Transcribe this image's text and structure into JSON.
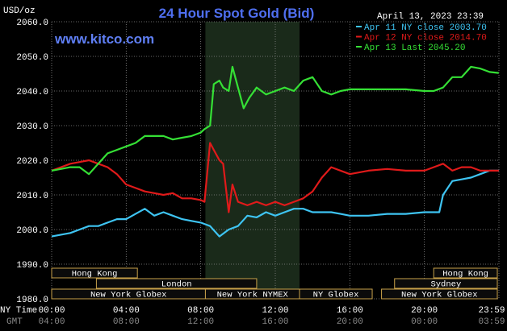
{
  "title": "24 Hour Spot Gold (Bid)",
  "website": "www.kitco.com",
  "date_label": "April 13, 2023 23:39",
  "unit_label": "USD/oz",
  "row_labels": {
    "ny_time": "NY Time",
    "gmt": "GMT"
  },
  "colors": {
    "background": "#000000",
    "grid": "#8a8a8a",
    "title": "#4f6ff0",
    "series_apr11": "#3ec4f2",
    "series_apr12": "#e01a1a",
    "series_apr13": "#35e035",
    "session_fill": "#0b0b0b",
    "session_border": "#c8a24a",
    "highlight": "#1a2a1a"
  },
  "chart_data": {
    "type": "line",
    "title": "24 Hour Spot Gold (Bid)",
    "xlabel": "",
    "ylabel": "USD/oz",
    "x_unit": "hours",
    "xlim": [
      0,
      24
    ],
    "ylim": [
      1980,
      2060
    ],
    "grid": true,
    "legend_position": "top-right",
    "y_ticks": [
      "2060.0",
      "2050.0",
      "2040.0",
      "2030.0",
      "2020.0",
      "2010.0",
      "2000.0",
      "1990.0",
      "1980.0"
    ],
    "x_ticks_ny": [
      "00:00",
      "04:00",
      "08:00",
      "12:00",
      "16:00",
      "20:00",
      "23:59"
    ],
    "x_ticks_gmt": [
      "04:00",
      "08:00",
      "12:00",
      "16:00",
      "20:00",
      "00:00",
      "03:59"
    ],
    "legend": [
      "Apr 11 NY close 2003.70",
      "Apr 12 NY close 2014.70",
      "Apr 13 Last 2045.20"
    ],
    "series": [
      {
        "name": "Apr 11 NY close 2003.70",
        "color": "#3ec4f2",
        "x": [
          0,
          0.5,
          1,
          1.5,
          2,
          2.5,
          3,
          3.5,
          4,
          4.5,
          5,
          5.5,
          6,
          6.5,
          7,
          7.5,
          8,
          8.5,
          9,
          9.5,
          10,
          10.5,
          11,
          11.5,
          12,
          12.5,
          13,
          13.5,
          14,
          14.5,
          15,
          15.5,
          16,
          17,
          18,
          19,
          20,
          20.8,
          21,
          21.5,
          22,
          22.5,
          23,
          23.5,
          23.99
        ],
        "values": [
          1998,
          1998.5,
          1999,
          2000,
          2001,
          2001,
          2002,
          2003,
          2003,
          2004.5,
          2006,
          2004,
          2005,
          2004,
          2003,
          2002.5,
          2002,
          2001,
          1998,
          2000,
          2001,
          2004,
          2003.5,
          2005,
          2004,
          2005,
          2006,
          2006,
          2005,
          2005,
          2005,
          2004.5,
          2004,
          2004,
          2004.5,
          2004.5,
          2005,
          2005,
          2010,
          2014,
          2014.5,
          2015,
          2016,
          2017,
          2017
        ]
      },
      {
        "name": "Apr 12 NY close 2014.70",
        "color": "#e01a1a",
        "x": [
          0,
          0.5,
          1,
          1.5,
          2,
          2.5,
          3,
          3.5,
          4,
          4.5,
          5,
          5.5,
          6,
          6.5,
          7,
          7.5,
          8,
          8.2,
          8.5,
          8.7,
          9,
          9.2,
          9.5,
          9.7,
          10,
          10.5,
          11,
          11.5,
          12,
          12.5,
          13,
          13.5,
          14,
          14.5,
          15,
          16,
          17,
          18,
          19,
          20,
          20.5,
          21,
          21.5,
          22,
          22.5,
          23,
          23.5,
          23.99
        ],
        "values": [
          2017,
          2018,
          2019,
          2019.5,
          2020,
          2019,
          2018,
          2016,
          2013,
          2012,
          2011,
          2010.5,
          2010,
          2010.5,
          2009,
          2009,
          2008.5,
          2008,
          2025,
          2023,
          2020,
          2019,
          2005,
          2013,
          2008,
          2007,
          2008,
          2007,
          2008,
          2007,
          2008,
          2009,
          2011,
          2015,
          2018,
          2016,
          2017,
          2017.5,
          2017,
          2017,
          2018,
          2019,
          2017,
          2018,
          2018,
          2017,
          2017,
          2017
        ]
      },
      {
        "name": "Apr 13 Last 2045.20",
        "color": "#35e035",
        "x": [
          0,
          0.5,
          1,
          1.5,
          2,
          2.5,
          3,
          3.5,
          4,
          4.5,
          5,
          5.5,
          6,
          6.5,
          7,
          7.5,
          8,
          8.2,
          8.5,
          8.7,
          9,
          9.2,
          9.5,
          9.7,
          10,
          10.3,
          10.6,
          11,
          11.5,
          12,
          12.5,
          13,
          13.5,
          14,
          14.5,
          15,
          15.5,
          16,
          17,
          18,
          19,
          20,
          20.5,
          21,
          21.5,
          22,
          22.5,
          23,
          23.5,
          23.99
        ],
        "values": [
          2017,
          2017.5,
          2018,
          2018,
          2016,
          2019,
          2022,
          2023,
          2024,
          2025,
          2027,
          2027,
          2027,
          2026,
          2026.5,
          2027,
          2028,
          2029,
          2030,
          2042,
          2043,
          2041,
          2040,
          2047,
          2041,
          2035,
          2038,
          2041,
          2039,
          2040,
          2041,
          2040,
          2043,
          2044,
          2040,
          2039,
          2040,
          2040.5,
          2040.5,
          2040.5,
          2040.5,
          2040,
          2040,
          2041,
          2044,
          2044,
          2047,
          2046.5,
          2045.5,
          2045.2
        ]
      }
    ],
    "highlight_band": {
      "x_start": 8.25,
      "x_end": 13.3
    },
    "sessions": [
      {
        "label": "Hong Kong",
        "row": 0,
        "start": -0.5,
        "end": 4.6
      },
      {
        "label": "Hong Kong",
        "row": 0,
        "start": 20.5,
        "end": 24.0
      },
      {
        "label": "London",
        "row": 1,
        "start": 2.4,
        "end": 11.0
      },
      {
        "label": "Sydney",
        "row": 1,
        "start": 18.4,
        "end": 24.0
      },
      {
        "label": "New York Globex",
        "row": 2,
        "start": -0.5,
        "end": 8.25
      },
      {
        "label": "New York NYMEX",
        "row": 2,
        "start": 8.25,
        "end": 13.3
      },
      {
        "label": "NY Globex",
        "row": 2,
        "start": 13.3,
        "end": 17.2
      },
      {
        "label": "New York Globex",
        "row": 2,
        "start": 17.7,
        "end": 24.0
      }
    ]
  }
}
